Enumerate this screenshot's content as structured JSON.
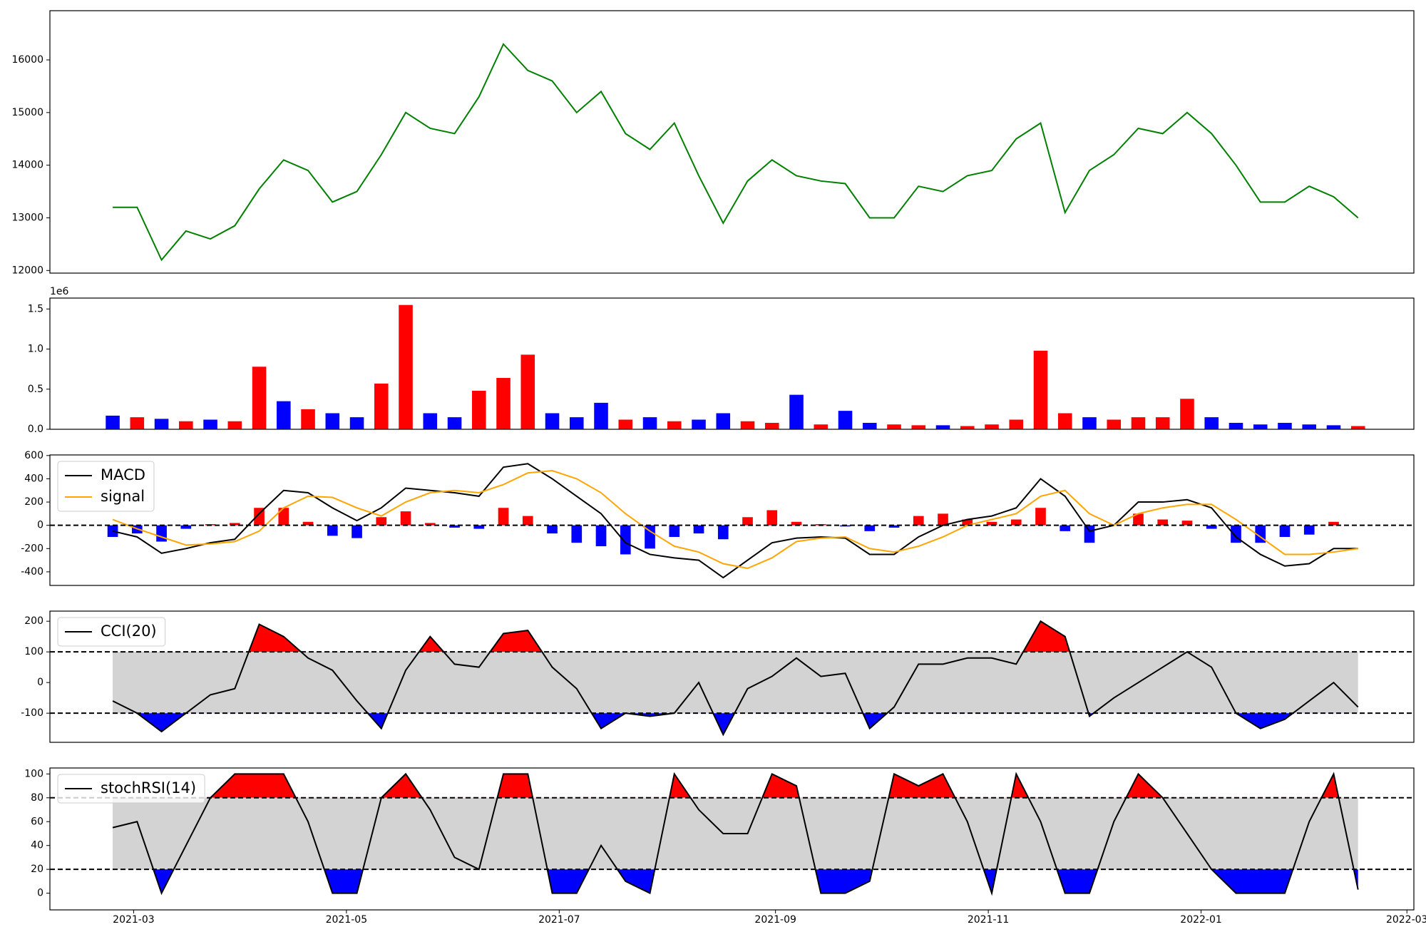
{
  "chart_data": [
    {
      "type": "line",
      "color": "#008000",
      "x": [
        "2021-02-23",
        "2021-03-02",
        "2021-03-09",
        "2021-03-16",
        "2021-03-23",
        "2021-03-30",
        "2021-04-06",
        "2021-04-13",
        "2021-04-20",
        "2021-04-27",
        "2021-05-04",
        "2021-05-11",
        "2021-05-18",
        "2021-05-25",
        "2021-06-01",
        "2021-06-08",
        "2021-06-15",
        "2021-06-22",
        "2021-06-29",
        "2021-07-06",
        "2021-07-13",
        "2021-07-20",
        "2021-07-27",
        "2021-08-03",
        "2021-08-10",
        "2021-08-17",
        "2021-08-24",
        "2021-08-31",
        "2021-09-07",
        "2021-09-14",
        "2021-09-21",
        "2021-09-28",
        "2021-10-05",
        "2021-10-12",
        "2021-10-19",
        "2021-10-26",
        "2021-11-02",
        "2021-11-09",
        "2021-11-16",
        "2021-11-23",
        "2021-11-30",
        "2021-12-07",
        "2021-12-14",
        "2021-12-21",
        "2021-12-28",
        "2022-01-04",
        "2022-01-11",
        "2022-01-18",
        "2022-01-25",
        "2022-02-01",
        "2022-02-08",
        "2022-02-15"
      ],
      "values": [
        13200,
        13200,
        12200,
        12750,
        12600,
        12850,
        13550,
        14100,
        13900,
        13300,
        13500,
        14200,
        15000,
        14700,
        14600,
        15300,
        16300,
        15800,
        15600,
        15000,
        15400,
        14600,
        14300,
        14800,
        13800,
        12900,
        13700,
        14100,
        13800,
        13700,
        13650,
        13000,
        13000,
        13600,
        13500,
        13800,
        13900,
        14500,
        14800,
        13100,
        13900,
        14200,
        14700,
        14600,
        15000,
        14600,
        14000,
        13300,
        13300,
        13600,
        13400,
        13000
      ],
      "xlim": [
        "2021-02-05",
        "2022-03-03"
      ],
      "ylim": [
        11950,
        16935
      ],
      "yticks": [
        12000,
        13000,
        14000,
        15000,
        16000
      ]
    },
    {
      "type": "bar",
      "offset_text": "1e6",
      "x": [
        "2021-02-23",
        "2021-03-02",
        "2021-03-09",
        "2021-03-16",
        "2021-03-23",
        "2021-03-30",
        "2021-04-06",
        "2021-04-13",
        "2021-04-20",
        "2021-04-27",
        "2021-05-04",
        "2021-05-11",
        "2021-05-18",
        "2021-05-25",
        "2021-06-01",
        "2021-06-08",
        "2021-06-15",
        "2021-06-22",
        "2021-06-29",
        "2021-07-06",
        "2021-07-13",
        "2021-07-20",
        "2021-07-27",
        "2021-08-03",
        "2021-08-10",
        "2021-08-17",
        "2021-08-24",
        "2021-08-31",
        "2021-09-07",
        "2021-09-14",
        "2021-09-21",
        "2021-09-28",
        "2021-10-05",
        "2021-10-12",
        "2021-10-19",
        "2021-10-26",
        "2021-11-02",
        "2021-11-09",
        "2021-11-16",
        "2021-11-23",
        "2021-11-30",
        "2021-12-07",
        "2021-12-14",
        "2021-12-21",
        "2021-12-28",
        "2022-01-04",
        "2022-01-11",
        "2022-01-18",
        "2022-01-25",
        "2022-02-01",
        "2022-02-08",
        "2022-02-15"
      ],
      "values": [
        170000,
        150000,
        130000,
        100000,
        120000,
        100000,
        780000,
        350000,
        250000,
        200000,
        150000,
        570000,
        1550000,
        200000,
        150000,
        480000,
        640000,
        930000,
        200000,
        150000,
        330000,
        120000,
        150000,
        100000,
        120000,
        200000,
        100000,
        80000,
        430000,
        60000,
        230000,
        80000,
        60000,
        50000,
        50000,
        40000,
        60000,
        120000,
        980000,
        200000,
        150000,
        120000,
        150000,
        150000,
        380000,
        150000,
        80000,
        60000,
        80000,
        60000,
        50000,
        40000
      ],
      "colors": [
        "#0000ff",
        "#ff0000",
        "#0000ff",
        "#ff0000",
        "#0000ff",
        "#ff0000",
        "#ff0000",
        "#0000ff",
        "#ff0000",
        "#0000ff",
        "#0000ff",
        "#ff0000",
        "#ff0000",
        "#0000ff",
        "#0000ff",
        "#ff0000",
        "#ff0000",
        "#ff0000",
        "#0000ff",
        "#0000ff",
        "#0000ff",
        "#ff0000",
        "#0000ff",
        "#ff0000",
        "#0000ff",
        "#0000ff",
        "#ff0000",
        "#ff0000",
        "#0000ff",
        "#ff0000",
        "#0000ff",
        "#0000ff",
        "#ff0000",
        "#ff0000",
        "#0000ff",
        "#ff0000",
        "#ff0000",
        "#ff0000",
        "#ff0000",
        "#ff0000",
        "#0000ff",
        "#ff0000",
        "#ff0000",
        "#ff0000",
        "#ff0000",
        "#0000ff",
        "#0000ff",
        "#0000ff",
        "#0000ff",
        "#0000ff",
        "#0000ff",
        "#ff0000"
      ],
      "xlim": [
        "2021-02-05",
        "2022-03-03"
      ],
      "ylim": [
        0,
        1636000
      ],
      "yticks": [
        {
          "value": 0,
          "label": "0.0"
        },
        {
          "value": 500000,
          "label": "0.5"
        },
        {
          "value": 1000000,
          "label": "1.0"
        },
        {
          "value": 1500000,
          "label": "1.5"
        }
      ]
    },
    {
      "type": "line",
      "legend": "upper left",
      "x": [
        "2021-02-23",
        "2021-03-02",
        "2021-03-09",
        "2021-03-16",
        "2021-03-23",
        "2021-03-30",
        "2021-04-06",
        "2021-04-13",
        "2021-04-20",
        "2021-04-27",
        "2021-05-04",
        "2021-05-11",
        "2021-05-18",
        "2021-05-25",
        "2021-06-01",
        "2021-06-08",
        "2021-06-15",
        "2021-06-22",
        "2021-06-29",
        "2021-07-06",
        "2021-07-13",
        "2021-07-20",
        "2021-07-27",
        "2021-08-03",
        "2021-08-10",
        "2021-08-17",
        "2021-08-24",
        "2021-08-31",
        "2021-09-07",
        "2021-09-14",
        "2021-09-21",
        "2021-09-28",
        "2021-10-05",
        "2021-10-12",
        "2021-10-19",
        "2021-10-26",
        "2021-11-02",
        "2021-11-09",
        "2021-11-16",
        "2021-11-23",
        "2021-11-30",
        "2021-12-07",
        "2021-12-14",
        "2021-12-21",
        "2021-12-28",
        "2022-01-04",
        "2022-01-11",
        "2022-01-18",
        "2022-01-25",
        "2022-02-01",
        "2022-02-08",
        "2022-02-15"
      ],
      "series": [
        {
          "name": "MACD",
          "color": "#000000",
          "values": [
            -50,
            -100,
            -240,
            -200,
            -150,
            -120,
            100,
            300,
            280,
            150,
            40,
            150,
            320,
            300,
            280,
            250,
            500,
            530,
            400,
            250,
            100,
            -150,
            -250,
            -280,
            -300,
            -450,
            -300,
            -150,
            -110,
            -100,
            -110,
            -250,
            -250,
            -100,
            0,
            50,
            80,
            150,
            400,
            250,
            -50,
            0,
            200,
            200,
            220,
            150,
            -100,
            -250,
            -350,
            -330,
            -200,
            -200
          ]
        },
        {
          "name": "signal",
          "color": "#ffa500",
          "values": [
            50,
            -30,
            -100,
            -170,
            -160,
            -140,
            -50,
            150,
            250,
            240,
            150,
            80,
            200,
            280,
            300,
            280,
            350,
            450,
            470,
            400,
            280,
            100,
            -50,
            -180,
            -230,
            -330,
            -370,
            -280,
            -140,
            -110,
            -100,
            -200,
            -230,
            -180,
            -100,
            0,
            50,
            100,
            250,
            300,
            100,
            0,
            100,
            150,
            180,
            180,
            50,
            -100,
            -250,
            -250,
            -230,
            -200
          ]
        }
      ],
      "histogram": {
        "up_color": "#ff0000",
        "down_color": "#0000ff",
        "values": [
          -100,
          -70,
          -140,
          -30,
          10,
          20,
          150,
          150,
          30,
          -90,
          -110,
          70,
          120,
          20,
          -20,
          -30,
          150,
          80,
          -70,
          -150,
          -180,
          -250,
          -200,
          -100,
          -70,
          -120,
          70,
          130,
          30,
          10,
          -10,
          -50,
          -20,
          80,
          100,
          50,
          30,
          50,
          150,
          -50,
          -150,
          0,
          100,
          50,
          40,
          -30,
          -150,
          -150,
          -100,
          -80,
          30,
          0
        ]
      },
      "hlines": [
        0
      ],
      "xlim": [
        "2021-02-05",
        "2022-03-03"
      ],
      "ylim": [
        -517,
        605
      ],
      "yticks": [
        -400,
        -200,
        0,
        200,
        400,
        600
      ]
    },
    {
      "type": "line",
      "legend": "upper left",
      "band_fill": true,
      "band_color": "#d3d3d3",
      "over_color": "#ff0000",
      "under_color": "#0000ff",
      "x": [
        "2021-02-23",
        "2021-03-02",
        "2021-03-09",
        "2021-03-16",
        "2021-03-23",
        "2021-03-30",
        "2021-04-06",
        "2021-04-13",
        "2021-04-20",
        "2021-04-27",
        "2021-05-04",
        "2021-05-11",
        "2021-05-18",
        "2021-05-25",
        "2021-06-01",
        "2021-06-08",
        "2021-06-15",
        "2021-06-22",
        "2021-06-29",
        "2021-07-06",
        "2021-07-13",
        "2021-07-20",
        "2021-07-27",
        "2021-08-03",
        "2021-08-10",
        "2021-08-17",
        "2021-08-24",
        "2021-08-31",
        "2021-09-07",
        "2021-09-14",
        "2021-09-21",
        "2021-09-28",
        "2021-10-05",
        "2021-10-12",
        "2021-10-19",
        "2021-10-26",
        "2021-11-02",
        "2021-11-09",
        "2021-11-16",
        "2021-11-23",
        "2021-11-30",
        "2021-12-07",
        "2021-12-14",
        "2021-12-21",
        "2021-12-28",
        "2022-01-04",
        "2022-01-11",
        "2022-01-18",
        "2022-01-25",
        "2022-02-01",
        "2022-02-08",
        "2022-02-15"
      ],
      "series": [
        {
          "name": "CCI(20)",
          "color": "#000000",
          "values": [
            -60,
            -100,
            -160,
            -100,
            -40,
            -20,
            190,
            150,
            80,
            40,
            -60,
            -150,
            40,
            150,
            60,
            50,
            160,
            170,
            50,
            -20,
            -150,
            -100,
            -110,
            -100,
            0,
            -170,
            -20,
            20,
            80,
            20,
            30,
            -150,
            -80,
            60,
            60,
            80,
            80,
            60,
            200,
            150,
            -110,
            -50,
            0,
            50,
            100,
            50,
            -100,
            -150,
            -120,
            -60,
            0,
            -80
          ]
        }
      ],
      "hlines": [
        -100,
        100
      ],
      "xlim": [
        "2021-02-05",
        "2022-03-03"
      ],
      "ylim": [
        -195,
        233
      ],
      "yticks": [
        -100,
        0,
        100,
        200
      ]
    },
    {
      "type": "line",
      "legend": "upper left",
      "band_fill": true,
      "band_color": "#d3d3d3",
      "over_color": "#ff0000",
      "under_color": "#0000ff",
      "x": [
        "2021-02-23",
        "2021-03-02",
        "2021-03-09",
        "2021-03-16",
        "2021-03-23",
        "2021-03-30",
        "2021-04-06",
        "2021-04-13",
        "2021-04-20",
        "2021-04-27",
        "2021-05-04",
        "2021-05-11",
        "2021-05-18",
        "2021-05-25",
        "2021-06-01",
        "2021-06-08",
        "2021-06-15",
        "2021-06-22",
        "2021-06-29",
        "2021-07-06",
        "2021-07-13",
        "2021-07-20",
        "2021-07-27",
        "2021-08-03",
        "2021-08-10",
        "2021-08-17",
        "2021-08-24",
        "2021-08-31",
        "2021-09-07",
        "2021-09-14",
        "2021-09-21",
        "2021-09-28",
        "2021-10-05",
        "2021-10-12",
        "2021-10-19",
        "2021-10-26",
        "2021-11-02",
        "2021-11-09",
        "2021-11-16",
        "2021-11-23",
        "2021-11-30",
        "2021-12-07",
        "2021-12-14",
        "2021-12-21",
        "2021-12-28",
        "2022-01-04",
        "2022-01-11",
        "2022-01-18",
        "2022-01-25",
        "2022-02-01",
        "2022-02-08",
        "2022-02-15"
      ],
      "series": [
        {
          "name": "stochRSI(14)",
          "color": "#000000",
          "values": [
            55,
            60,
            0,
            40,
            80,
            100,
            100,
            100,
            60,
            0,
            0,
            80,
            100,
            70,
            30,
            20,
            100,
            100,
            0,
            0,
            40,
            10,
            0,
            100,
            70,
            50,
            50,
            100,
            90,
            0,
            0,
            10,
            100,
            90,
            100,
            60,
            0,
            100,
            60,
            0,
            0,
            60,
            100,
            80,
            50,
            20,
            0,
            0,
            0,
            60,
            100,
            3
          ]
        }
      ],
      "hlines": [
        20,
        80
      ],
      "xlim": [
        "2021-02-05",
        "2022-03-03"
      ],
      "ylim": [
        -14,
        105
      ],
      "yticks": [
        0,
        20,
        40,
        60,
        80,
        100
      ],
      "xticks": [
        {
          "value": "2021-03-01",
          "label": "2021-03"
        },
        {
          "value": "2021-05-01",
          "label": "2021-05"
        },
        {
          "value": "2021-07-01",
          "label": "2021-07"
        },
        {
          "value": "2021-09-01",
          "label": "2021-09"
        },
        {
          "value": "2021-11-01",
          "label": "2021-11"
        },
        {
          "value": "2022-01-01",
          "label": "2022-01"
        },
        {
          "value": "2022-03-01",
          "label": "2022-03"
        }
      ]
    }
  ]
}
